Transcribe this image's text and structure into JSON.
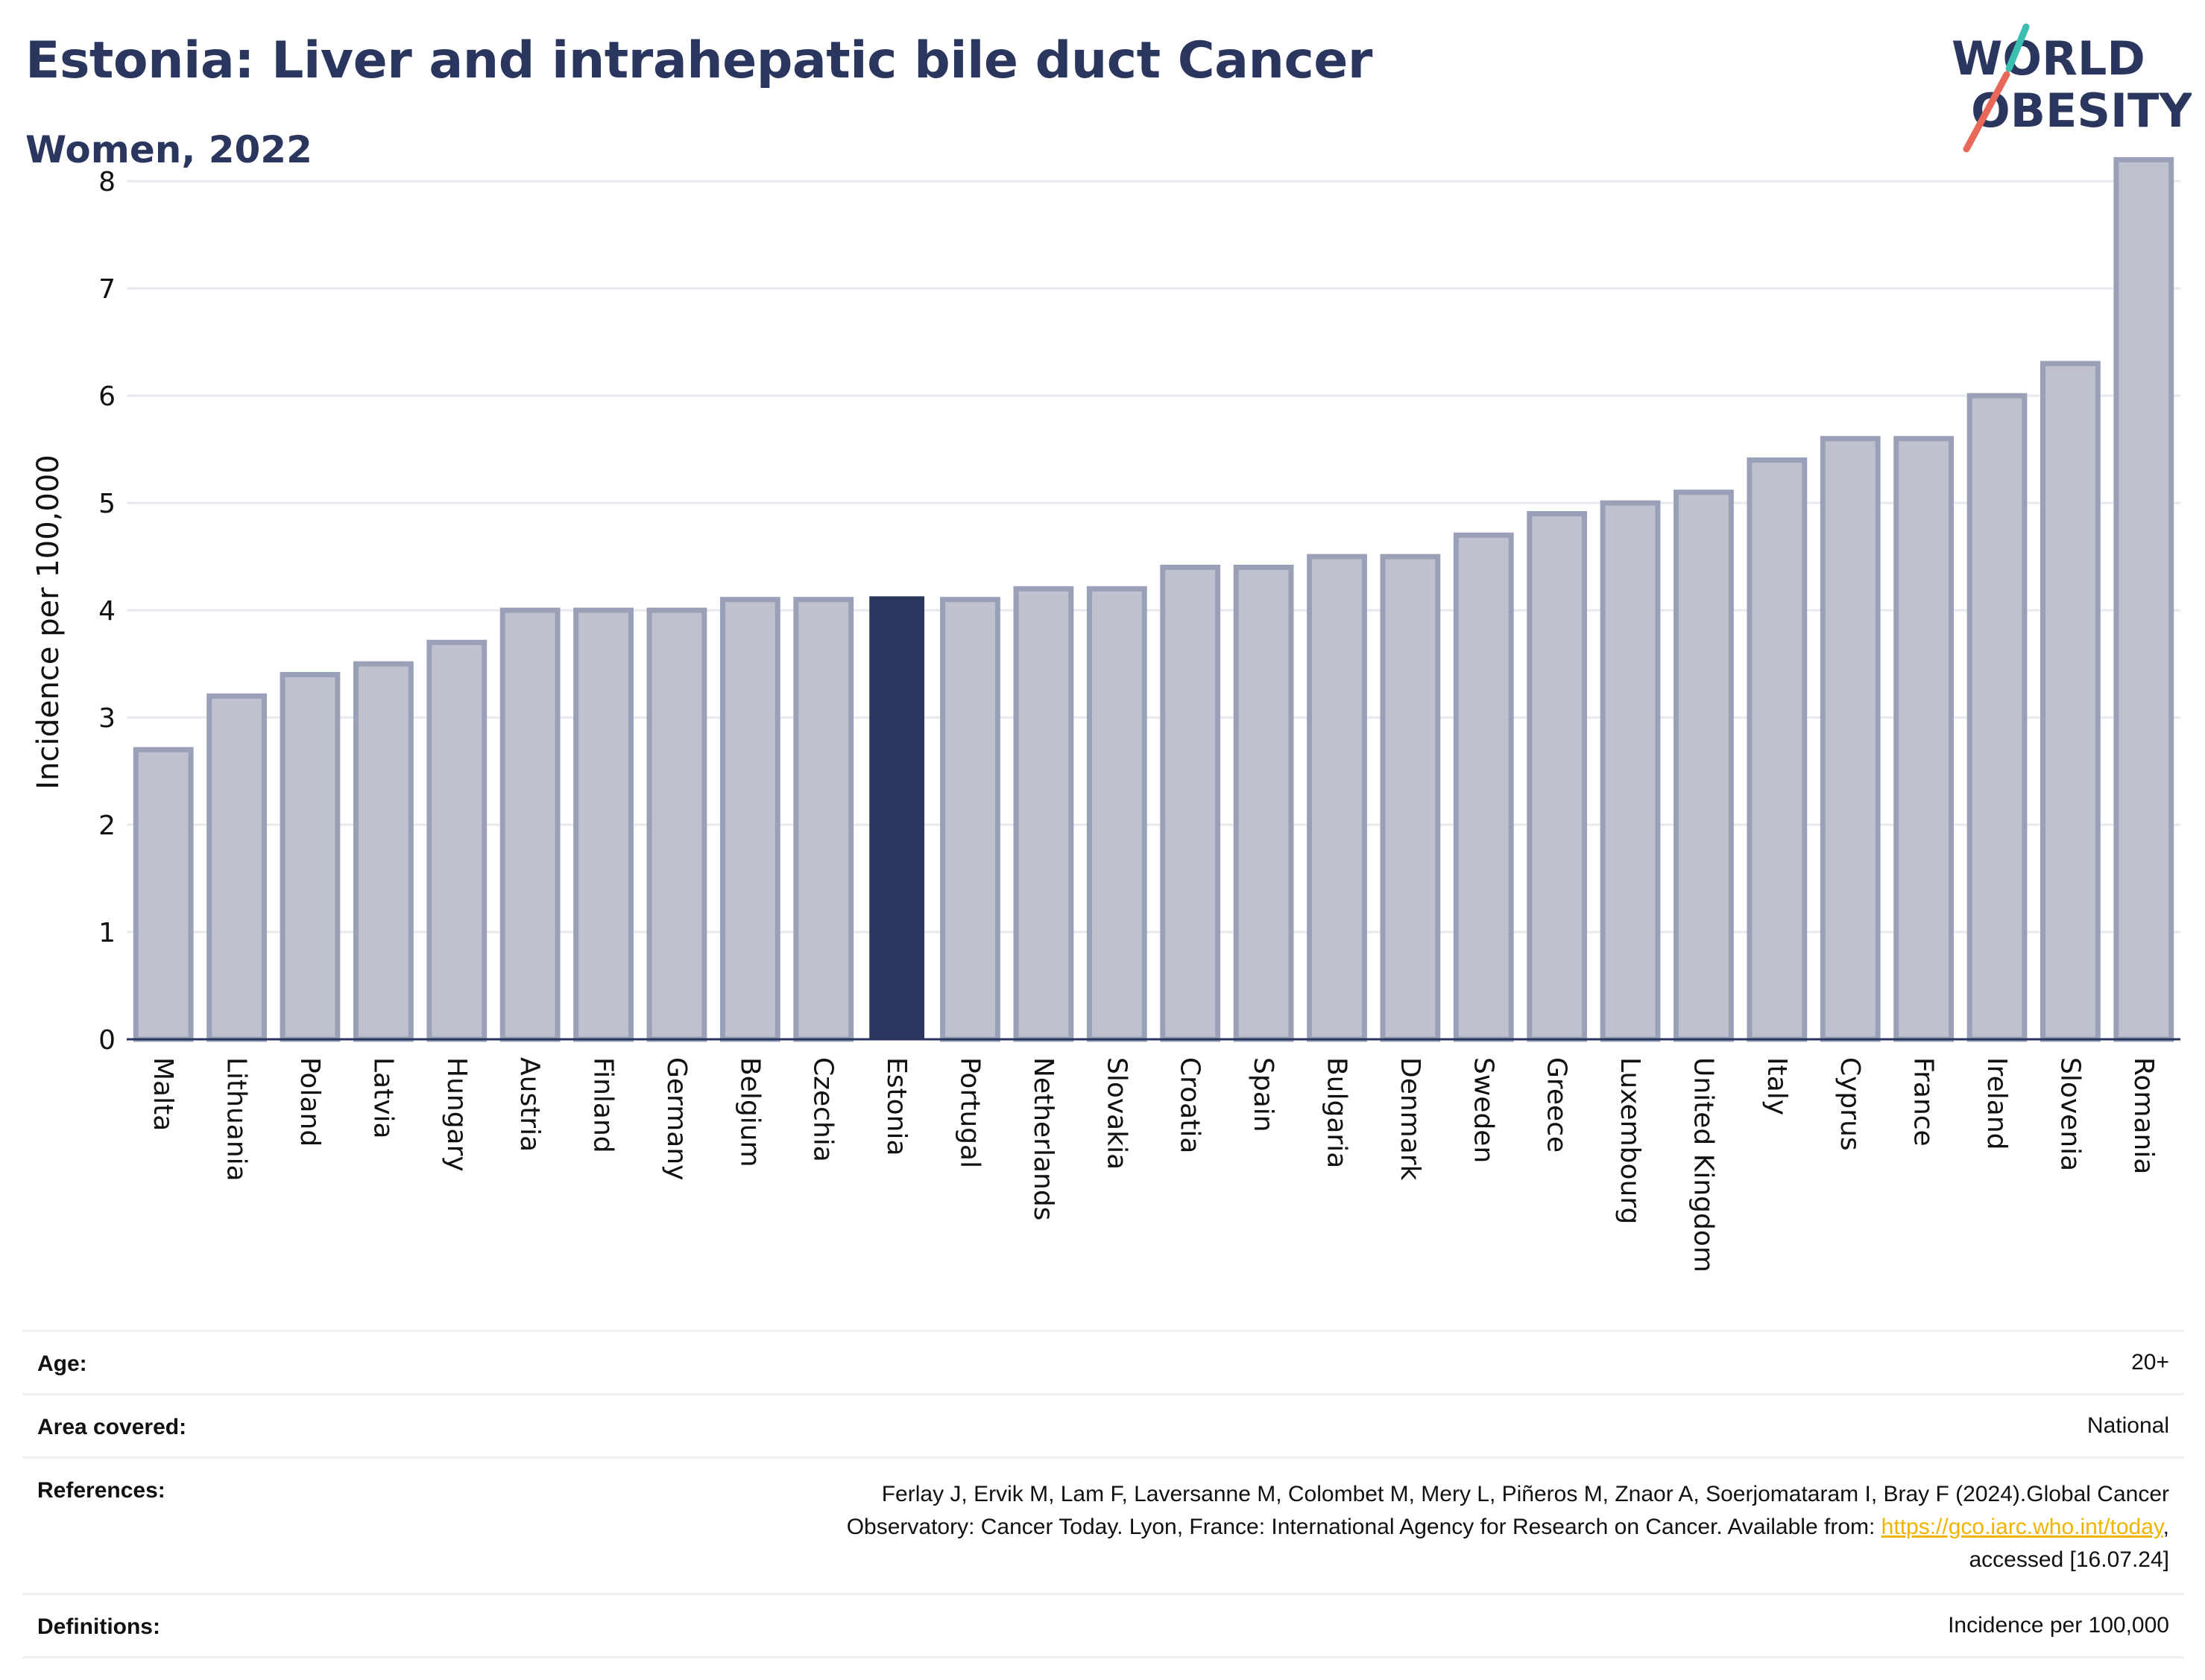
{
  "header": {
    "title": "Estonia: Liver and intrahepatic bile duct Cancer",
    "subtitle": "Women, 2022"
  },
  "logo": {
    "line1": "WORLD",
    "line2": "OBESITY",
    "colors": {
      "text": "#2b365e",
      "slash_top": "#3bbfb0",
      "slash_bottom": "#e8695a"
    }
  },
  "chart_data": {
    "type": "bar",
    "ylabel": "Incidence per 100,000",
    "xlabel": "",
    "ylim": [
      0,
      8.3
    ],
    "yticks": [
      0,
      1,
      2,
      3,
      4,
      5,
      6,
      7,
      8
    ],
    "grid": true,
    "highlight": "Estonia",
    "colors": {
      "bar": "#bfc2ce",
      "bar_stroke": "#9aa0b8",
      "highlight": "#2b365e",
      "grid": "#e8e9ef",
      "axis": "#2b365e"
    },
    "categories": [
      "Malta",
      "Lithuania",
      "Poland",
      "Latvia",
      "Hungary",
      "Austria",
      "Finland",
      "Germany",
      "Belgium",
      "Czechia",
      "Estonia",
      "Portugal",
      "Netherlands",
      "Slovakia",
      "Croatia",
      "Spain",
      "Bulgaria",
      "Denmark",
      "Sweden",
      "Greece",
      "Luxembourg",
      "United Kingdom",
      "Italy",
      "Cyprus",
      "France",
      "Ireland",
      "Slovenia",
      "Romania"
    ],
    "values": [
      2.7,
      3.2,
      3.4,
      3.5,
      3.7,
      4.0,
      4.0,
      4.0,
      4.1,
      4.1,
      4.13,
      4.1,
      4.2,
      4.2,
      4.4,
      4.4,
      4.5,
      4.5,
      4.7,
      4.9,
      5.0,
      5.1,
      5.4,
      5.6,
      5.6,
      6.0,
      6.3,
      8.2
    ]
  },
  "footer": {
    "age_label": "Age:",
    "age_value": "20+",
    "area_label": "Area covered:",
    "area_value": "National",
    "references_label": "References:",
    "references_line1": "Ferlay J, Ervik M, Lam F, Laversanne M, Colombet M, Mery L, Piñeros M, Znaor A, Soerjomataram I, Bray F (2024).Global Cancer",
    "references_line2_pre": "Observatory: Cancer Today. Lyon, France: International Agency for Research on Cancer. Available from: ",
    "references_link": "https://gco.iarc.who.int/today",
    "references_line2_post": ",",
    "references_line3": "accessed [16.07.24]",
    "definitions_label": "Definitions:",
    "definitions_value": "Incidence per 100,000"
  }
}
